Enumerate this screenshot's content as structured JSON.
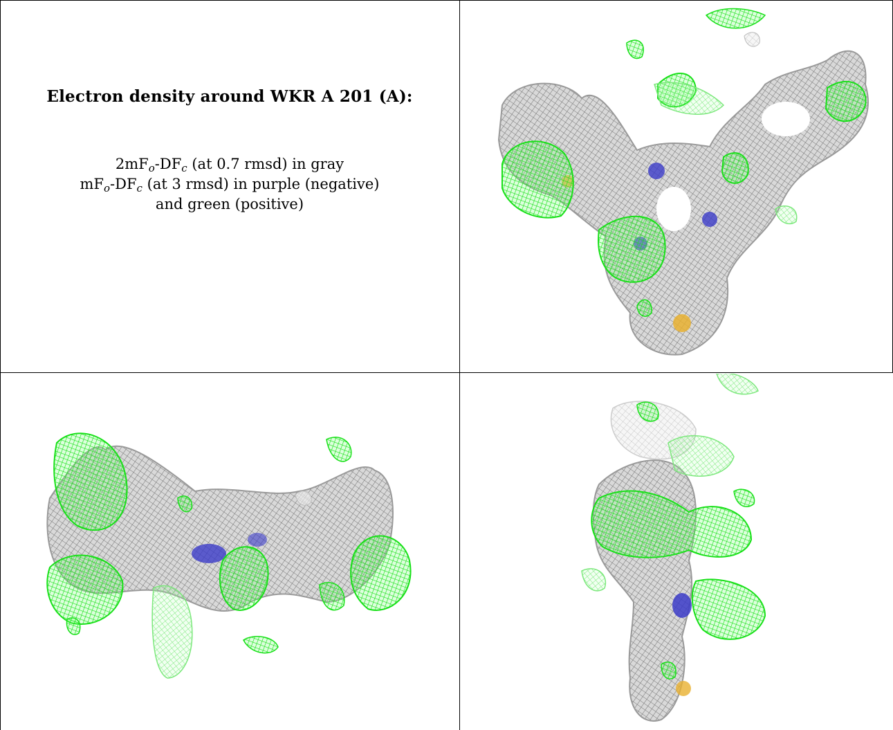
{
  "caption": {
    "title": "Electron density around WKR A 201 (A):",
    "line1": {
      "prefix": "2mF",
      "sub1": "o",
      "middle": "-DF",
      "sub2": "c",
      "suffix": " (at 0.7 rmsd) in gray"
    },
    "line2": {
      "prefix": "mF",
      "sub1": "o",
      "middle": "-DF",
      "sub2": "c",
      "suffix": " (at 3 rmsd) in purple (negative)"
    },
    "line3": "and green (positive)"
  },
  "colors": {
    "map_2fofc": "#9a9a9a",
    "map_fofc_positive": "#22ee22",
    "map_fofc_negative": "#7a2a9a",
    "nitrogen": "#3b3bc8",
    "sulfur": "#e8b030"
  },
  "panels": [
    {
      "id": "view-1",
      "icons": [
        "gray-mesh",
        "green-mesh",
        "nitrogen-atom",
        "sulfur-atom"
      ]
    },
    {
      "id": "view-2",
      "icons": [
        "gray-mesh",
        "green-mesh",
        "nitrogen-atom"
      ]
    },
    {
      "id": "view-3",
      "icons": [
        "gray-mesh",
        "green-mesh",
        "nitrogen-atom",
        "sulfur-atom"
      ]
    }
  ]
}
